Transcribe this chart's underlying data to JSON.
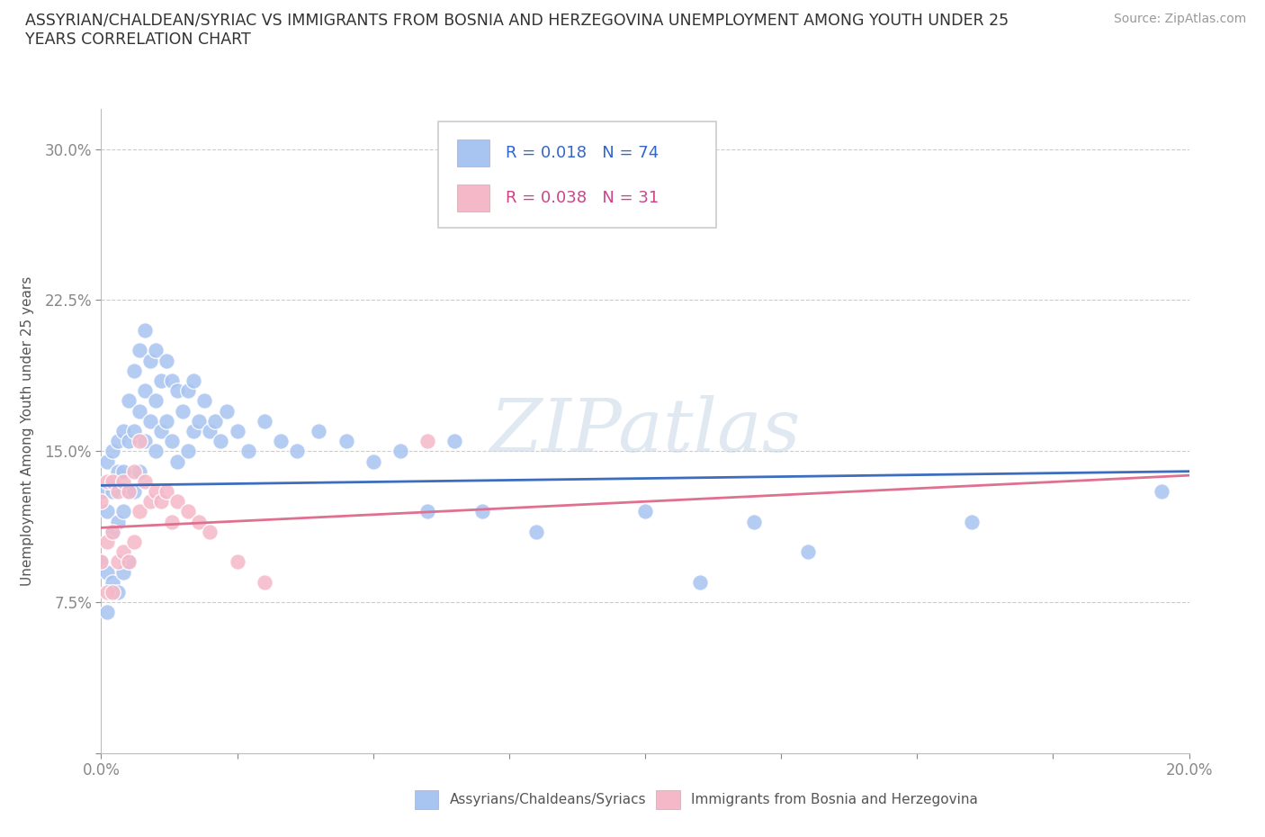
{
  "title": "ASSYRIAN/CHALDEAN/SYRIAC VS IMMIGRANTS FROM BOSNIA AND HERZEGOVINA UNEMPLOYMENT AMONG YOUTH UNDER 25\nYEARS CORRELATION CHART",
  "source_text": "Source: ZipAtlas.com",
  "ylabel": "Unemployment Among Youth under 25 years",
  "xlim": [
    0.0,
    0.2
  ],
  "ylim": [
    0.0,
    0.32
  ],
  "xticks": [
    0.0,
    0.025,
    0.05,
    0.075,
    0.1,
    0.125,
    0.15,
    0.175,
    0.2
  ],
  "xticklabels": [
    "0.0%",
    "",
    "",
    "",
    "",
    "",
    "",
    "",
    "20.0%"
  ],
  "yticks": [
    0.0,
    0.075,
    0.15,
    0.225,
    0.3
  ],
  "yticklabels": [
    "",
    "7.5%",
    "15.0%",
    "22.5%",
    "30.0%"
  ],
  "grid_color": "#cccccc",
  "background_color": "#ffffff",
  "watermark": "ZIPatlas",
  "blue_color": "#a8c4f0",
  "pink_color": "#f5b8c8",
  "blue_line_color": "#3d6dbf",
  "pink_line_color": "#e07090",
  "legend_label_blue": "Assyrians/Chaldeans/Syriacs",
  "legend_label_pink": "Immigrants from Bosnia and Herzegovina",
  "R_blue": "0.018",
  "N_blue": "74",
  "R_pink": "0.038",
  "N_pink": "31",
  "blue_scatter_x": [
    0.0,
    0.0,
    0.001,
    0.001,
    0.001,
    0.001,
    0.002,
    0.002,
    0.002,
    0.002,
    0.003,
    0.003,
    0.003,
    0.003,
    0.004,
    0.004,
    0.004,
    0.004,
    0.005,
    0.005,
    0.005,
    0.005,
    0.006,
    0.006,
    0.006,
    0.007,
    0.007,
    0.007,
    0.008,
    0.008,
    0.008,
    0.009,
    0.009,
    0.01,
    0.01,
    0.01,
    0.011,
    0.011,
    0.012,
    0.012,
    0.013,
    0.013,
    0.014,
    0.014,
    0.015,
    0.016,
    0.016,
    0.017,
    0.017,
    0.018,
    0.019,
    0.02,
    0.021,
    0.022,
    0.023,
    0.025,
    0.027,
    0.03,
    0.033,
    0.036,
    0.04,
    0.045,
    0.05,
    0.055,
    0.06,
    0.065,
    0.07,
    0.08,
    0.1,
    0.11,
    0.12,
    0.13,
    0.16,
    0.195
  ],
  "blue_scatter_y": [
    0.13,
    0.095,
    0.145,
    0.12,
    0.09,
    0.07,
    0.15,
    0.13,
    0.11,
    0.085,
    0.155,
    0.14,
    0.115,
    0.08,
    0.16,
    0.14,
    0.12,
    0.09,
    0.175,
    0.155,
    0.13,
    0.095,
    0.19,
    0.16,
    0.13,
    0.2,
    0.17,
    0.14,
    0.21,
    0.18,
    0.155,
    0.195,
    0.165,
    0.2,
    0.175,
    0.15,
    0.185,
    0.16,
    0.195,
    0.165,
    0.185,
    0.155,
    0.18,
    0.145,
    0.17,
    0.18,
    0.15,
    0.185,
    0.16,
    0.165,
    0.175,
    0.16,
    0.165,
    0.155,
    0.17,
    0.16,
    0.15,
    0.165,
    0.155,
    0.15,
    0.16,
    0.155,
    0.145,
    0.15,
    0.12,
    0.155,
    0.12,
    0.11,
    0.12,
    0.085,
    0.115,
    0.1,
    0.115,
    0.13
  ],
  "pink_scatter_x": [
    0.0,
    0.0,
    0.001,
    0.001,
    0.001,
    0.002,
    0.002,
    0.002,
    0.003,
    0.003,
    0.004,
    0.004,
    0.005,
    0.005,
    0.006,
    0.006,
    0.007,
    0.007,
    0.008,
    0.009,
    0.01,
    0.011,
    0.012,
    0.013,
    0.014,
    0.016,
    0.018,
    0.02,
    0.025,
    0.03,
    0.06
  ],
  "pink_scatter_y": [
    0.125,
    0.095,
    0.135,
    0.105,
    0.08,
    0.135,
    0.11,
    0.08,
    0.13,
    0.095,
    0.135,
    0.1,
    0.13,
    0.095,
    0.14,
    0.105,
    0.155,
    0.12,
    0.135,
    0.125,
    0.13,
    0.125,
    0.13,
    0.115,
    0.125,
    0.12,
    0.115,
    0.11,
    0.095,
    0.085,
    0.155
  ]
}
